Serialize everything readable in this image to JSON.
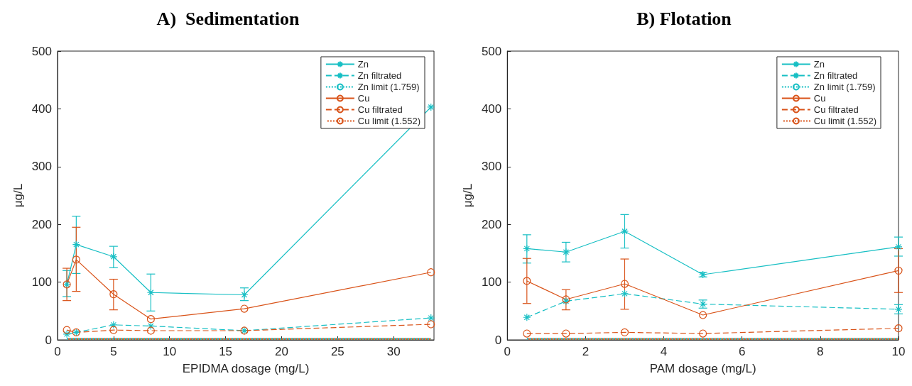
{
  "chart_data": [
    {
      "type": "line",
      "title": "A)  Sedimentation",
      "xlabel": "EPIDMA dosage (mg/L)",
      "ylabel": "μg/L",
      "xlim": [
        0,
        33.6
      ],
      "xticks": [
        0,
        5,
        10,
        15,
        20,
        25,
        30
      ],
      "ylim": [
        0,
        500
      ],
      "yticks": [
        0,
        100,
        200,
        300,
        400,
        500
      ],
      "grid": false,
      "legend": "top right",
      "x": [
        0.83,
        1.67,
        5,
        8.33,
        16.67,
        33.33
      ],
      "series": [
        {
          "name": "Zn",
          "color": "#17bfc4",
          "marker": "cross",
          "line_style": "solid",
          "values": [
            96,
            165,
            144,
            82,
            78,
            403
          ],
          "errors": [
            [
              75,
              120
            ],
            [
              115,
              214
            ],
            [
              125,
              162
            ],
            [
              50,
              114
            ],
            [
              68,
              90
            ],
            null
          ]
        },
        {
          "name": "Zn filtrated",
          "color": "#17bfc4",
          "marker": "cross",
          "line_style": "dashed",
          "values": [
            10,
            13,
            26,
            24,
            16,
            38
          ]
        },
        {
          "name": "Zn limit (1.759)",
          "color": "#17bfc4",
          "marker": "none",
          "line_style": "dotted",
          "x": [
            0.83,
            33.33
          ],
          "values": [
            1.759,
            1.759
          ]
        },
        {
          "name": "Cu",
          "color": "#d95319",
          "marker": "circle",
          "line_style": "solid",
          "values": [
            96,
            139,
            79,
            36,
            54,
            117
          ],
          "errors": [
            [
              68,
              124
            ],
            [
              84,
              195
            ],
            [
              52,
              105
            ],
            null,
            null,
            null
          ]
        },
        {
          "name": "Cu filtrated",
          "color": "#d95319",
          "marker": "circle",
          "line_style": "dashed",
          "values": [
            17,
            13,
            17,
            16,
            16,
            27
          ]
        },
        {
          "name": "Cu limit (1.552)",
          "color": "#d95319",
          "marker": "none",
          "line_style": "dotted",
          "x": [
            0.83,
            33.33
          ],
          "values": [
            1.552,
            1.552
          ]
        }
      ]
    },
    {
      "type": "line",
      "title": "B) Flotation",
      "xlabel": "PAM dosage (mg/L)",
      "ylabel": "μg/L",
      "xlim": [
        0,
        10
      ],
      "xticks": [
        0,
        2,
        4,
        6,
        8,
        10
      ],
      "ylim": [
        0,
        500
      ],
      "yticks": [
        0,
        100,
        200,
        300,
        400,
        500
      ],
      "grid": false,
      "legend": "top right",
      "x": [
        0.5,
        1.5,
        3,
        5,
        10
      ],
      "series": [
        {
          "name": "Zn",
          "color": "#17bfc4",
          "marker": "cross",
          "line_style": "solid",
          "values": [
            158,
            152,
            188,
            113,
            161
          ],
          "errors": [
            [
              133,
              182
            ],
            [
              135,
              169
            ],
            [
              159,
              217
            ],
            [
              109,
              117
            ],
            [
              145,
              178
            ]
          ]
        },
        {
          "name": "Zn filtrated",
          "color": "#17bfc4",
          "marker": "cross",
          "line_style": "dashed",
          "values": [
            39,
            67,
            80,
            62,
            53
          ],
          "errors": [
            null,
            null,
            null,
            [
              55,
              69
            ],
            [
              45,
              61
            ]
          ]
        },
        {
          "name": "Zn limit (1.759)",
          "color": "#17bfc4",
          "marker": "none",
          "line_style": "dotted",
          "x": [
            0.5,
            10
          ],
          "values": [
            1.759,
            1.759
          ]
        },
        {
          "name": "Cu",
          "color": "#d95319",
          "marker": "circle",
          "line_style": "solid",
          "values": [
            102,
            70,
            97,
            43,
            120
          ],
          "errors": [
            [
              63,
              141
            ],
            [
              52,
              87
            ],
            [
              53,
              140
            ],
            null,
            [
              82,
              158
            ]
          ]
        },
        {
          "name": "Cu filtrated",
          "color": "#d95319",
          "marker": "circle",
          "line_style": "dashed",
          "values": [
            11,
            11,
            13,
            11,
            20
          ]
        },
        {
          "name": "Cu limit (1.552)",
          "color": "#d95319",
          "marker": "none",
          "line_style": "dotted",
          "x": [
            0.5,
            10
          ],
          "values": [
            1.552,
            1.552
          ]
        }
      ]
    }
  ]
}
